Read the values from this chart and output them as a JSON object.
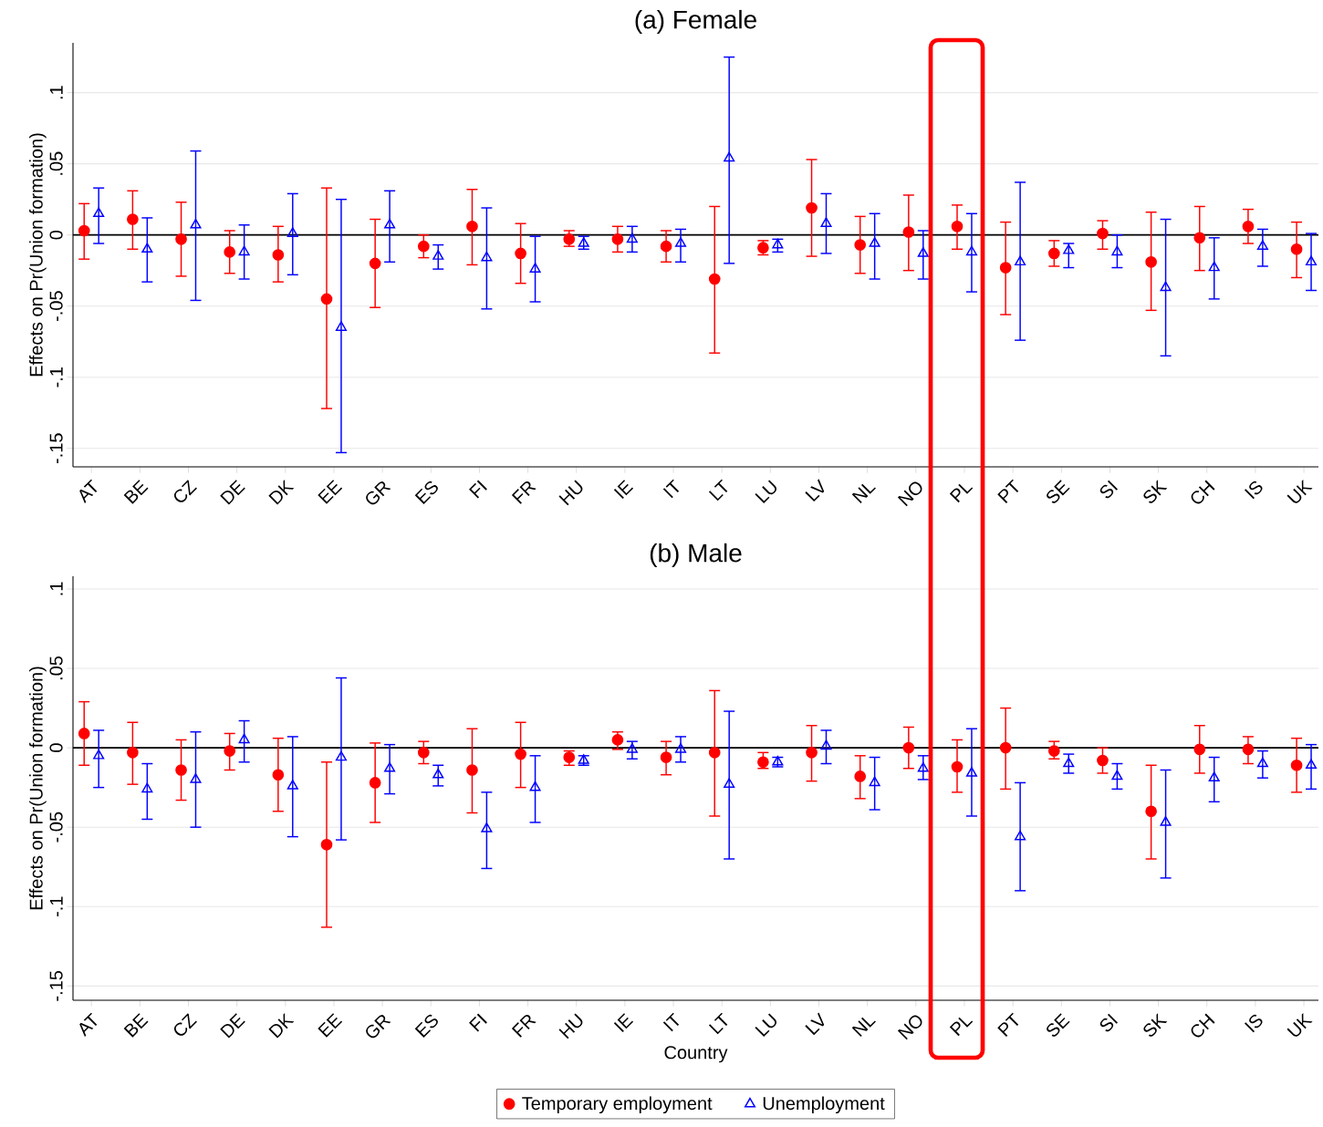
{
  "chart_data": [
    {
      "type": "scatter",
      "title": "(a) Female",
      "ylabel": "Effects on Pr(Union formation)",
      "categories": [
        "AT",
        "BE",
        "CZ",
        "DE",
        "DK",
        "EE",
        "GR",
        "ES",
        "FI",
        "FR",
        "HU",
        "IE",
        "IT",
        "LT",
        "LU",
        "LV",
        "NL",
        "NO",
        "PL",
        "PT",
        "SE",
        "SI",
        "SK",
        "CH",
        "IS",
        "UK"
      ],
      "series": [
        {
          "color": "#ff0000",
          "marker": "circle",
          "values": [
            0.003,
            0.011,
            -0.003,
            -0.012,
            -0.014,
            -0.045,
            -0.02,
            -0.008,
            0.006,
            -0.013,
            -0.003,
            -0.003,
            -0.008,
            -0.031,
            -0.009,
            0.019,
            -0.007,
            0.002,
            0.006,
            -0.023,
            -0.013,
            0.001,
            -0.019,
            -0.002,
            0.006,
            -0.01
          ],
          "errors": [
            [
              -0.017,
              0.022
            ],
            [
              -0.01,
              0.031
            ],
            [
              -0.029,
              0.023
            ],
            [
              -0.027,
              0.003
            ],
            [
              -0.033,
              0.006
            ],
            [
              -0.122,
              0.033
            ],
            [
              -0.051,
              0.011
            ],
            [
              -0.016,
              0.0
            ],
            [
              -0.021,
              0.032
            ],
            [
              -0.034,
              0.008
            ],
            [
              -0.008,
              0.003
            ],
            [
              -0.012,
              0.006
            ],
            [
              -0.019,
              0.003
            ],
            [
              -0.083,
              0.02
            ],
            [
              -0.014,
              -0.004
            ],
            [
              -0.015,
              0.053
            ],
            [
              -0.027,
              0.013
            ],
            [
              -0.025,
              0.028
            ],
            [
              -0.01,
              0.021
            ],
            [
              -0.056,
              0.009
            ],
            [
              -0.022,
              -0.004
            ],
            [
              -0.01,
              0.01
            ],
            [
              -0.053,
              0.016
            ],
            [
              -0.025,
              0.02
            ],
            [
              -0.006,
              0.018
            ],
            [
              -0.03,
              0.009
            ]
          ]
        },
        {
          "color": "#0000ff",
          "marker": "triangle",
          "values": [
            0.015,
            -0.01,
            0.007,
            -0.012,
            0.001,
            -0.065,
            0.007,
            -0.015,
            -0.016,
            -0.024,
            -0.006,
            -0.003,
            -0.006,
            0.054,
            -0.007,
            0.008,
            -0.006,
            -0.013,
            -0.012,
            -0.019,
            -0.011,
            -0.012,
            -0.037,
            -0.023,
            -0.008,
            -0.019
          ],
          "errors": [
            [
              -0.006,
              0.033
            ],
            [
              -0.033,
              0.012
            ],
            [
              -0.046,
              0.059
            ],
            [
              -0.031,
              0.007
            ],
            [
              -0.028,
              0.029
            ],
            [
              -0.153,
              0.025
            ],
            [
              -0.019,
              0.031
            ],
            [
              -0.024,
              -0.007
            ],
            [
              -0.052,
              0.019
            ],
            [
              -0.047,
              -0.001
            ],
            [
              -0.01,
              -0.001
            ],
            [
              -0.012,
              0.006
            ],
            [
              -0.019,
              0.004
            ],
            [
              -0.02,
              0.125
            ],
            [
              -0.012,
              -0.003
            ],
            [
              -0.013,
              0.029
            ],
            [
              -0.031,
              0.015
            ],
            [
              -0.031,
              0.003
            ],
            [
              -0.04,
              0.015
            ],
            [
              -0.074,
              0.037
            ],
            [
              -0.023,
              -0.006
            ],
            [
              -0.023,
              0.0
            ],
            [
              -0.085,
              0.011
            ],
            [
              -0.045,
              -0.002
            ],
            [
              -0.022,
              0.004
            ],
            [
              -0.039,
              0.001
            ]
          ]
        }
      ],
      "ylim": [
        -0.163,
        0.135
      ],
      "yticks": [
        {
          "value": 0.1,
          "label": ".1"
        },
        {
          "value": 0.05,
          "label": ".05"
        },
        0,
        {
          "value": -0.05,
          "label": "-.05"
        },
        {
          "value": -0.1,
          "label": "-.1"
        },
        {
          "value": -0.15,
          "label": "-.15"
        }
      ],
      "grid": "y",
      "ref_lines": [
        {
          "axis": "y",
          "value": 0,
          "color": "#000000"
        }
      ]
    },
    {
      "type": "scatter",
      "title": "(b) Male",
      "ylabel": "Effects on Pr(Union formation)",
      "xlabel": "Country",
      "categories": [
        "AT",
        "BE",
        "CZ",
        "DE",
        "DK",
        "EE",
        "GR",
        "ES",
        "FI",
        "FR",
        "HU",
        "IE",
        "IT",
        "LT",
        "LU",
        "LV",
        "NL",
        "NO",
        "PL",
        "PT",
        "SE",
        "SI",
        "SK",
        "CH",
        "IS",
        "UK"
      ],
      "series": [
        {
          "name": "Temporary employment",
          "color": "#ff0000",
          "marker": "circle",
          "values": [
            0.009,
            -0.003,
            -0.014,
            -0.002,
            -0.017,
            -0.061,
            -0.022,
            -0.003,
            -0.014,
            -0.004,
            -0.006,
            0.005,
            -0.006,
            -0.003,
            -0.009,
            -0.003,
            -0.018,
            0.0,
            -0.012,
            0.0,
            -0.002,
            -0.008,
            -0.04,
            -0.001,
            -0.001,
            -0.011
          ],
          "errors": [
            [
              -0.011,
              0.029
            ],
            [
              -0.023,
              0.016
            ],
            [
              -0.033,
              0.005
            ],
            [
              -0.014,
              0.009
            ],
            [
              -0.04,
              0.006
            ],
            [
              -0.113,
              -0.009
            ],
            [
              -0.047,
              0.003
            ],
            [
              -0.01,
              0.004
            ],
            [
              -0.041,
              0.012
            ],
            [
              -0.025,
              0.016
            ],
            [
              -0.011,
              -0.002
            ],
            [
              -0.001,
              0.01
            ],
            [
              -0.017,
              0.004
            ],
            [
              -0.043,
              0.036
            ],
            [
              -0.013,
              -0.003
            ],
            [
              -0.021,
              0.014
            ],
            [
              -0.032,
              -0.005
            ],
            [
              -0.013,
              0.013
            ],
            [
              -0.028,
              0.005
            ],
            [
              -0.026,
              0.025
            ],
            [
              -0.007,
              0.004
            ],
            [
              -0.016,
              0.0
            ],
            [
              -0.07,
              -0.011
            ],
            [
              -0.016,
              0.014
            ],
            [
              -0.01,
              0.007
            ],
            [
              -0.028,
              0.006
            ]
          ]
        },
        {
          "name": "Unemployment",
          "color": "#0000ff",
          "marker": "triangle",
          "values": [
            -0.005,
            -0.026,
            -0.02,
            0.005,
            -0.024,
            -0.006,
            -0.013,
            -0.017,
            -0.051,
            -0.025,
            -0.008,
            -0.001,
            -0.001,
            -0.023,
            -0.009,
            0.001,
            -0.022,
            -0.013,
            -0.016,
            -0.056,
            -0.01,
            -0.018,
            -0.047,
            -0.019,
            -0.01,
            -0.011
          ],
          "errors": [
            [
              -0.025,
              0.011
            ],
            [
              -0.045,
              -0.01
            ],
            [
              -0.05,
              0.01
            ],
            [
              -0.009,
              0.017
            ],
            [
              -0.056,
              0.007
            ],
            [
              -0.058,
              0.044
            ],
            [
              -0.029,
              0.002
            ],
            [
              -0.024,
              -0.011
            ],
            [
              -0.076,
              -0.028
            ],
            [
              -0.047,
              -0.005
            ],
            [
              -0.011,
              -0.005
            ],
            [
              -0.007,
              0.004
            ],
            [
              -0.009,
              0.007
            ],
            [
              -0.07,
              0.023
            ],
            [
              -0.012,
              -0.006
            ],
            [
              -0.01,
              0.011
            ],
            [
              -0.039,
              -0.006
            ],
            [
              -0.02,
              -0.005
            ],
            [
              -0.043,
              0.012
            ],
            [
              -0.09,
              -0.022
            ],
            [
              -0.016,
              -0.004
            ],
            [
              -0.026,
              -0.01
            ],
            [
              -0.082,
              -0.014
            ],
            [
              -0.034,
              -0.006
            ],
            [
              -0.019,
              -0.002
            ],
            [
              -0.026,
              0.002
            ]
          ]
        }
      ],
      "ylim": [
        -0.159,
        0.108
      ],
      "yticks": [
        {
          "value": 0.1,
          "label": ".1"
        },
        {
          "value": 0.05,
          "label": ".05"
        },
        0,
        {
          "value": -0.05,
          "label": "-.05"
        },
        {
          "value": -0.1,
          "label": "-.1"
        },
        {
          "value": -0.15,
          "label": "-.15"
        }
      ],
      "grid": "y",
      "legend": "bottom",
      "ref_lines": [
        {
          "axis": "y",
          "value": 0,
          "color": "#000000"
        }
      ]
    }
  ]
}
